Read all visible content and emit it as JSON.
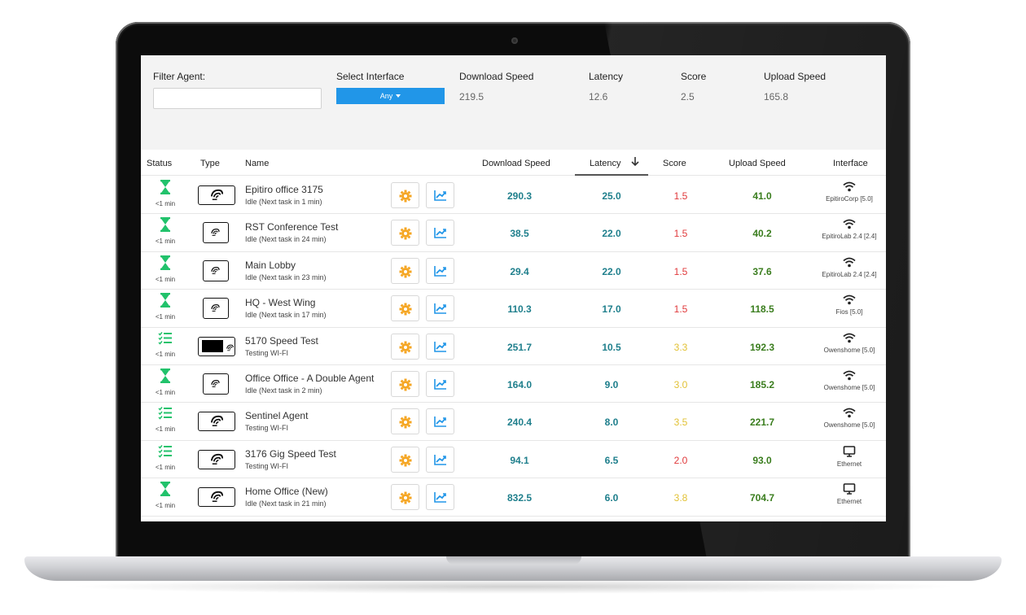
{
  "filters": {
    "filter_agent_label": "Filter Agent:",
    "filter_agent_value": "",
    "select_interface_label": "Select Interface",
    "select_interface_value": "Any",
    "download_speed_label": "Download Speed",
    "download_speed_value": "219.5",
    "latency_label": "Latency",
    "latency_value": "12.6",
    "score_label": "Score",
    "score_value": "2.5",
    "upload_speed_label": "Upload Speed",
    "upload_speed_value": "165.8"
  },
  "table": {
    "headers": {
      "status": "Status",
      "type": "Type",
      "name": "Name",
      "download": "Download Speed",
      "latency": "Latency",
      "score": "Score",
      "upload": "Upload Speed",
      "interface": "Interface"
    },
    "sort_icon": "arrow-down-icon",
    "rows": [
      {
        "status_icon": "hourglass-icon",
        "status_text": "<1 min",
        "type": "wide-agent",
        "name": "Epitiro office 3175",
        "detail": "Idle (Next task in 1 min)",
        "download": "290.3",
        "latency": "25.0",
        "score": "1.5",
        "score_color": "red",
        "upload": "41.0",
        "interface_icon": "wifi-icon",
        "interface": "EpitiroCorp [5.0]"
      },
      {
        "status_icon": "hourglass-icon",
        "status_text": "<1 min",
        "type": "small-agent",
        "name": "RST Conference Test",
        "detail": "Idle (Next task in 24 min)",
        "download": "38.5",
        "latency": "22.0",
        "score": "1.5",
        "score_color": "red",
        "upload": "40.2",
        "interface_icon": "wifi-icon",
        "interface": "EpitiroLab 2.4 [2.4]"
      },
      {
        "status_icon": "hourglass-icon",
        "status_text": "<1 min",
        "type": "small-agent",
        "name": "Main Lobby",
        "detail": "Idle (Next task in 23 min)",
        "download": "29.4",
        "latency": "22.0",
        "score": "1.5",
        "score_color": "red",
        "upload": "37.6",
        "interface_icon": "wifi-icon",
        "interface": "EpitiroLab 2.4 [2.4]"
      },
      {
        "status_icon": "hourglass-icon",
        "status_text": "<1 min",
        "type": "small-agent",
        "name": "HQ - West Wing",
        "detail": "Idle (Next task in 17 min)",
        "download": "110.3",
        "latency": "17.0",
        "score": "1.5",
        "score_color": "red",
        "upload": "118.5",
        "interface_icon": "wifi-icon",
        "interface": "Fios [5.0]"
      },
      {
        "status_icon": "checklist-icon",
        "status_text": "<1 min",
        "type": "screen-agent",
        "name": "5170 Speed Test",
        "detail": "Testing WI-FI",
        "download": "251.7",
        "latency": "10.5",
        "score": "3.3",
        "score_color": "yellow",
        "upload": "192.3",
        "interface_icon": "wifi-icon",
        "interface": "Owenshome [5.0]"
      },
      {
        "status_icon": "hourglass-icon",
        "status_text": "<1 min",
        "type": "small-agent",
        "name": "Office Office - A Double Agent",
        "detail": "Idle (Next task in 2 min)",
        "download": "164.0",
        "latency": "9.0",
        "score": "3.0",
        "score_color": "yellow",
        "upload": "185.2",
        "interface_icon": "wifi-icon",
        "interface": "Owenshome [5.0]"
      },
      {
        "status_icon": "checklist-icon",
        "status_text": "<1 min",
        "type": "wide-agent",
        "name": "Sentinel Agent",
        "detail": "Testing WI-FI",
        "download": "240.4",
        "latency": "8.0",
        "score": "3.5",
        "score_color": "yellow",
        "upload": "221.7",
        "interface_icon": "wifi-icon",
        "interface": "Owenshome [5.0]"
      },
      {
        "status_icon": "checklist-icon",
        "status_text": "<1 min",
        "type": "wide-agent",
        "name": "3176 Gig Speed Test",
        "detail": "Testing WI-FI",
        "download": "94.1",
        "latency": "6.5",
        "score": "2.0",
        "score_color": "red",
        "upload": "93.0",
        "interface_icon": "monitor-icon",
        "interface": "Ethernet"
      },
      {
        "status_icon": "hourglass-icon",
        "status_text": "<1 min",
        "type": "wide-agent",
        "name": "Home Office (New)",
        "detail": "Idle (Next task in 21 min)",
        "download": "832.5",
        "latency": "6.0",
        "score": "3.8",
        "score_color": "yellow",
        "upload": "704.7",
        "interface_icon": "monitor-icon",
        "interface": "Ethernet"
      }
    ]
  },
  "colors": {
    "accent_blue": "#2196e8",
    "status_green": "#21c26b",
    "gear_orange": "#f5a623",
    "chart_blue": "#2196e8",
    "score_red": "#e0393b",
    "score_yellow": "#e2c236",
    "upload_green": "#3a7d1e",
    "speed_teal": "#1f7f8c"
  }
}
